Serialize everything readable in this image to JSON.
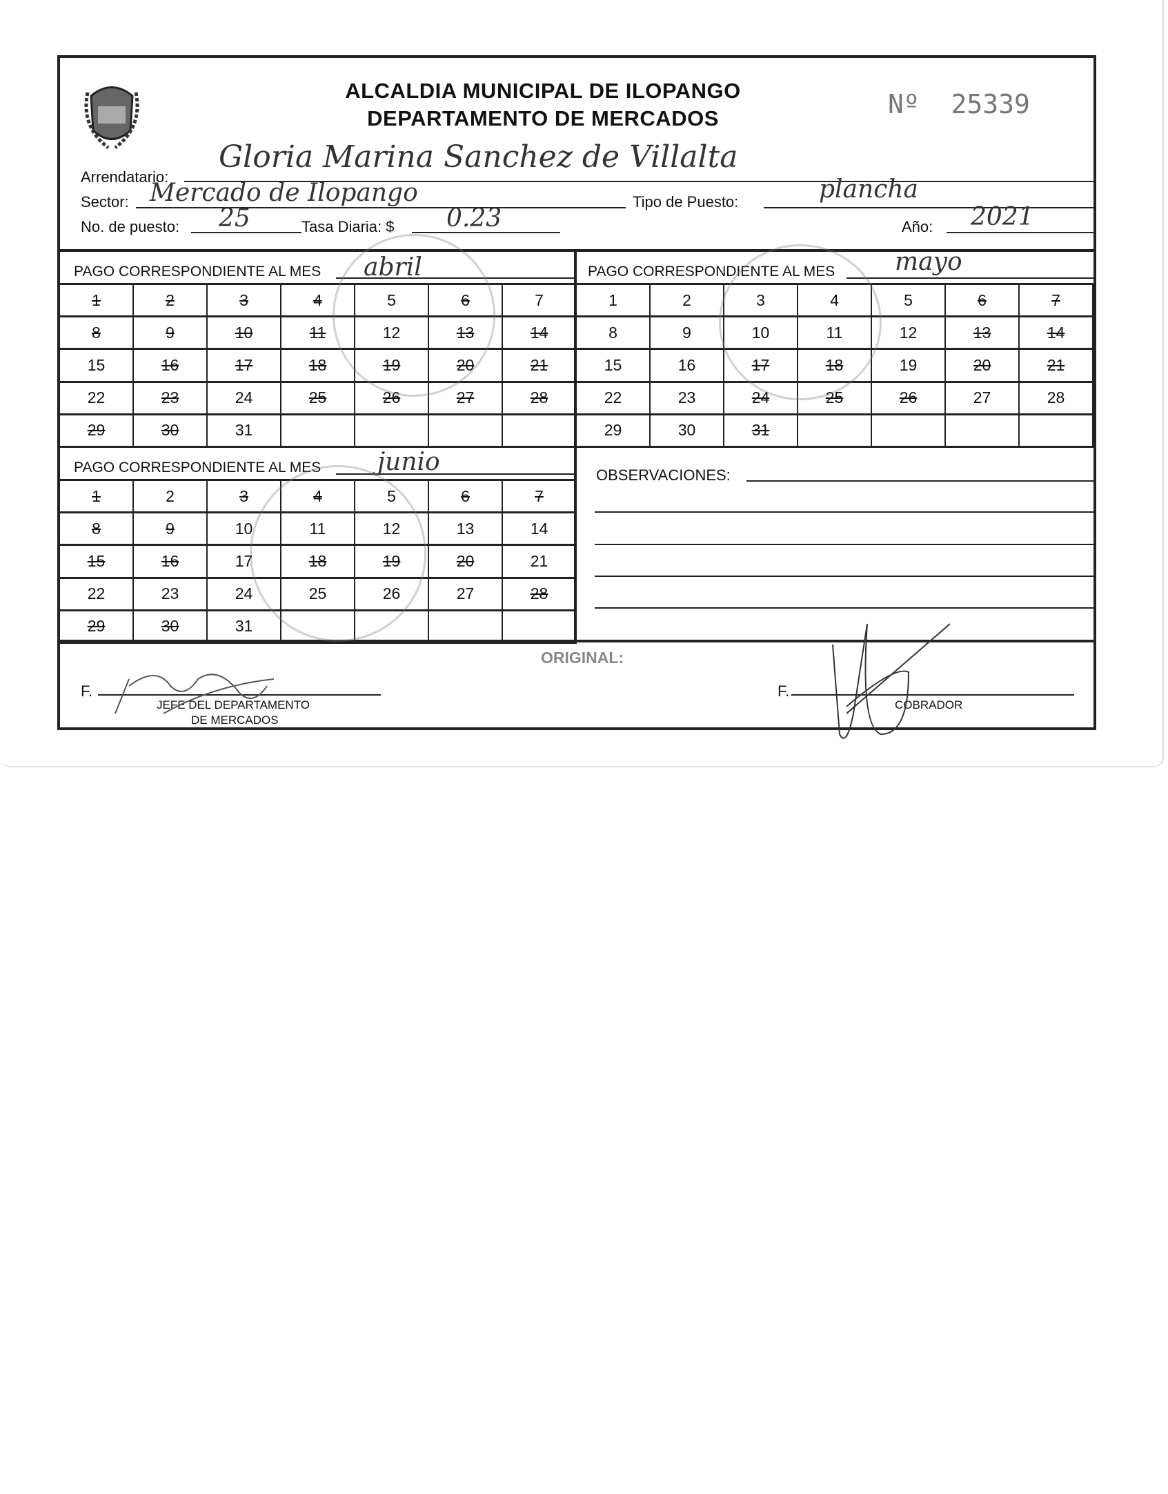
{
  "header": {
    "title_line1": "ALCALDIA MUNICIPAL DE ILOPANGO",
    "title_line2": "DEPARTAMENTO DE MERCADOS",
    "number_label": "Nº",
    "number": "25339",
    "logo_text": "CIUDAD DE ILOPANGO"
  },
  "fields": {
    "arrendatario_label": "Arrendatario:",
    "arrendatario_value": "Gloria Marina Sanchez de Villalta",
    "sector_label": "Sector:",
    "sector_value": "Mercado de Ilopango",
    "tipo_label": "Tipo de Puesto:",
    "tipo_value": "plancha",
    "puesto_label": "No. de puesto:",
    "puesto_value": "25",
    "tasa_label": "Tasa Diaria: $",
    "tasa_value": "0.23",
    "anio_label": "Año:",
    "anio_value": "2021"
  },
  "months": [
    {
      "label": "PAGO CORRESPONDIENTE AL MES",
      "value": "abril",
      "days": [
        "1",
        "2",
        "3",
        "4",
        "5",
        "6",
        "7",
        "8",
        "9",
        "10",
        "11",
        "12",
        "13",
        "14",
        "15",
        "16",
        "17",
        "18",
        "19",
        "20",
        "21",
        "22",
        "23",
        "24",
        "25",
        "26",
        "27",
        "28",
        "29",
        "30",
        "31",
        "",
        "",
        "",
        ""
      ],
      "paid": [
        1,
        2,
        3,
        4,
        6,
        8,
        9,
        10,
        11,
        13,
        14,
        16,
        17,
        18,
        19,
        20,
        21,
        23,
        25,
        26,
        27,
        28,
        29,
        30
      ]
    },
    {
      "label": "PAGO CORRESPONDIENTE AL MES",
      "value": "mayo",
      "days": [
        "1",
        "2",
        "3",
        "4",
        "5",
        "6",
        "7",
        "8",
        "9",
        "10",
        "11",
        "12",
        "13",
        "14",
        "15",
        "16",
        "17",
        "18",
        "19",
        "20",
        "21",
        "22",
        "23",
        "24",
        "25",
        "26",
        "27",
        "28",
        "29",
        "30",
        "31",
        "",
        "",
        "",
        ""
      ],
      "paid": [
        6,
        7,
        13,
        14,
        17,
        18,
        20,
        21,
        24,
        25,
        26,
        31
      ]
    },
    {
      "label": "PAGO CORRESPONDIENTE AL MES",
      "value": "junio",
      "days": [
        "1",
        "2",
        "3",
        "4",
        "5",
        "6",
        "7",
        "8",
        "9",
        "10",
        "11",
        "12",
        "13",
        "14",
        "15",
        "16",
        "17",
        "18",
        "19",
        "20",
        "21",
        "22",
        "23",
        "24",
        "25",
        "26",
        "27",
        "28",
        "29",
        "30",
        "31",
        "",
        "",
        "",
        ""
      ],
      "paid": [
        1,
        3,
        4,
        6,
        7,
        8,
        9,
        15,
        16,
        18,
        19,
        20,
        28,
        29,
        30
      ]
    }
  ],
  "observaciones_label": "OBSERVACIONES:",
  "footer": {
    "original_label": "ORIGINAL:",
    "f_label": "F.",
    "jefe_line1": "JEFE DEL DEPARTAMENTO",
    "jefe_line2": "DE MERCADOS",
    "cobrador_label": "COBRADOR"
  }
}
